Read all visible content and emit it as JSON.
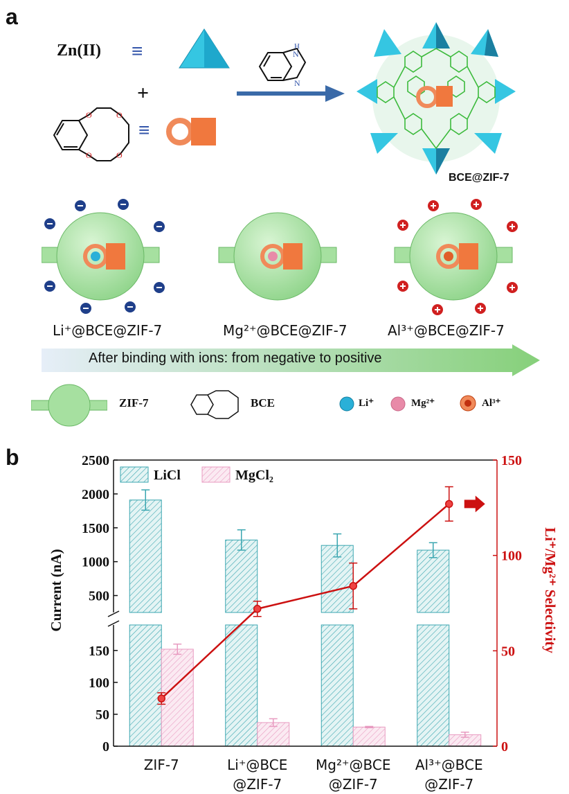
{
  "panel_a": {
    "label": "a",
    "zn_label": "Zn(II)",
    "equiv": "≡",
    "plus": "+",
    "product_label": "BCE@ZIF-7",
    "complexes": [
      {
        "label": "Li⁺@BCE@ZIF-7",
        "charge": "negative",
        "ion": "Li+"
      },
      {
        "label": "Mg²⁺@BCE@ZIF-7",
        "charge": "neutral",
        "ion": "Mg2+"
      },
      {
        "label": "Al³⁺@BCE@ZIF-7",
        "charge": "positive",
        "ion": "Al3+"
      }
    ],
    "arrow_text": "After binding with ions: from negative to positive",
    "legend": {
      "zif": "ZIF-7",
      "bce": "BCE",
      "li": "Li⁺",
      "mg": "Mg²⁺",
      "al": "Al³⁺"
    },
    "colors": {
      "tetrahedron": "#1fb8d8",
      "crown": "#f08a5a",
      "cage": "#9edc98",
      "li": "#2ab0d8",
      "mg": "#e88aa8",
      "al": "#e0602a",
      "neg": "#1f3f8a",
      "pos": "#d02020"
    }
  },
  "chart_data": {
    "label": "b",
    "type": "bar",
    "categories": [
      "ZIF-7",
      "Li⁺@BCE\n@ZIF-7",
      "Mg²⁺@BCE\n@ZIF-7",
      "Al³⁺@BCE\n@ZIF-7"
    ],
    "series": [
      {
        "name": "LiCl",
        "values": [
          1910,
          1320,
          1240,
          1170
        ],
        "errors": [
          150,
          150,
          170,
          110
        ],
        "color": "#3aa6b0"
      },
      {
        "name": "MgCl₂",
        "values": [
          152,
          37,
          30,
          18
        ],
        "errors": [
          8,
          6,
          1,
          4
        ],
        "color": "#e89ac0"
      }
    ],
    "line_series": {
      "name": "Li⁺/Mg²⁺ Selectivity",
      "values": [
        25,
        72,
        84,
        127
      ],
      "errors": [
        3,
        4,
        12,
        9
      ],
      "color": "#cc1111"
    },
    "ylabel": "Current (nA)",
    "y2label": "Li⁺/Mg²⁺ Selectivity",
    "y_lower_ticks": [
      0,
      50,
      100,
      150
    ],
    "y_upper_ticks": [
      500,
      1000,
      1500,
      2000,
      2500
    ],
    "y2_ticks": [
      0,
      50,
      100,
      150
    ],
    "ylim_lower": [
      0,
      190
    ],
    "ylim_upper": [
      250,
      2500
    ],
    "y2lim": [
      0,
      150
    ],
    "legend_position": "top-left"
  }
}
